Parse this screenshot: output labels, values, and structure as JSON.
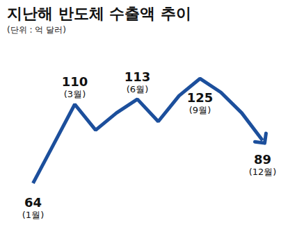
{
  "chart_data": {
    "type": "line",
    "title": "지난해 반도체 수출액 추이",
    "subtitle": "(단위 : 억 달러)",
    "categories": [
      "(1월)",
      null,
      "(3월)",
      null,
      null,
      "(6월)",
      null,
      null,
      "(9월)",
      null,
      null,
      "(12월)"
    ],
    "values": [
      64,
      87,
      110,
      95,
      105,
      113,
      100,
      115,
      125,
      117,
      105,
      89
    ],
    "value_labels": [
      "64",
      null,
      "110",
      null,
      null,
      "113",
      null,
      null,
      "125",
      null,
      null,
      "89"
    ],
    "color": "#1c4f9c",
    "marker": "arrow",
    "line_style": "solid",
    "data_labels": true,
    "tick_labels": false,
    "grid": false,
    "ylim": [
      50,
      135
    ]
  }
}
